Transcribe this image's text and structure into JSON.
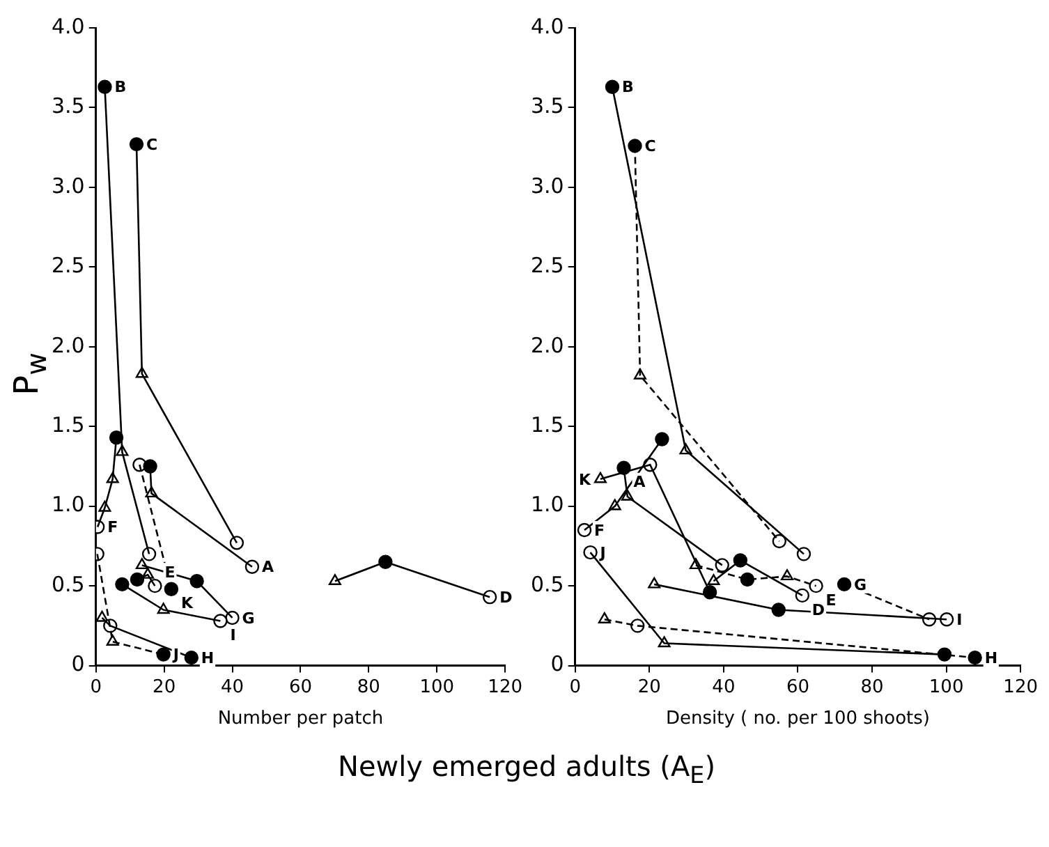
{
  "chart_data": [
    {
      "type": "line",
      "xlabel": "Number per patch",
      "ylabel": "P$_{w}$",
      "xlim": [
        0,
        120
      ],
      "xticks": [
        0,
        20,
        40,
        60,
        80,
        100,
        120
      ],
      "ylim": [
        0,
        4
      ],
      "yticks": [
        0,
        0.5,
        {
          "value": 1,
          "label": "1.0"
        },
        1.5,
        {
          "value": 2,
          "label": "2.0"
        },
        2.5,
        {
          "value": 3,
          "label": "3.0"
        },
        3.5,
        {
          "value": 4,
          "label": "4.0"
        }
      ],
      "grid": false,
      "legend": false,
      "marker": "none",
      "series": [
        {
          "color": "#000000",
          "line_style": "solid",
          "x": [
            2.6,
            7.7,
            15.6
          ],
          "values": [
            3.63,
            1.34,
            0.7
          ]
        },
        {
          "type": "line",
          "color": "#000000",
          "line_style": "solid",
          "x": [
            11.9,
            13.5,
            41.3
          ],
          "values": [
            3.27,
            1.83,
            0.77
          ]
        },
        {
          "type": "line",
          "color": "#000000",
          "line_style": "solid",
          "x": [
            15.9,
            16.3,
            45.8
          ],
          "values": [
            1.25,
            1.08,
            0.62
          ]
        },
        {
          "type": "line",
          "color": "#000000",
          "line_style": "solid",
          "x": [
            70.1,
            84.9,
            115.5
          ],
          "values": [
            0.53,
            0.65,
            0.43
          ]
        },
        {
          "type": "line",
          "color": "#000000",
          "line_style": "solid",
          "x": [
            12.1,
            15.2,
            17.3
          ],
          "values": [
            0.54,
            0.57,
            0.5
          ]
        },
        {
          "type": "line",
          "color": "#000000",
          "line_style": "solid",
          "x": [
            0.5,
            2.6,
            4.9,
            6
          ],
          "values": [
            0.87,
            0.99,
            1.17,
            1.43
          ]
        },
        {
          "type": "line",
          "color": "#000000",
          "line_style": "solid",
          "x": [
            13.5,
            29.6,
            40
          ],
          "values": [
            0.63,
            0.53,
            0.3
          ]
        },
        {
          "type": "line",
          "color": "#000000",
          "line_style": "solid",
          "x": [
            1.8,
            4.2,
            28
          ],
          "values": [
            0.3,
            0.25,
            0.05
          ]
        },
        {
          "type": "line",
          "color": "#000000",
          "line_style": "solid",
          "x": [
            7.7,
            19.8,
            36.5
          ],
          "values": [
            0.51,
            0.35,
            0.28
          ]
        },
        {
          "type": "line",
          "color": "#000000",
          "line_style": "dashed",
          "x": [
            0.4,
            4.9,
            19.8
          ],
          "values": [
            0.7,
            0.15,
            0.07
          ]
        },
        {
          "type": "line",
          "color": "#000000",
          "line_style": "dashed",
          "x": [
            12.8,
            22.1
          ],
          "values": [
            1.26,
            0.48
          ]
        },
        {
          "type": "scatter",
          "marker": "circle",
          "color": "#000000",
          "x": [
            15.9,
            2.6,
            11.9,
            84.9,
            12.1,
            6,
            29.6,
            28,
            7.7,
            19.8,
            22.1
          ],
          "values": [
            1.25,
            3.63,
            3.27,
            0.65,
            0.54,
            1.43,
            0.53,
            0.05,
            0.51,
            0.07,
            0.48
          ]
        },
        {
          "type": "scatter",
          "marker": "circle",
          "color": "#ffffff",
          "x": [
            45.8,
            15.6,
            41.3,
            115.5,
            17.3,
            0.5,
            40,
            4.2,
            36.5,
            0.4,
            12.8
          ],
          "values": [
            0.62,
            0.7,
            0.77,
            0.43,
            0.5,
            0.87,
            0.3,
            0.25,
            0.28,
            0.7,
            1.26
          ]
        },
        {
          "type": "scatter",
          "marker": "triangle",
          "color": "#ffffff",
          "x": [
            16.3,
            7.7,
            13.5,
            70.1,
            15.2,
            2.6,
            4.9,
            13.5,
            1.8,
            19.8,
            4.9
          ],
          "values": [
            1.08,
            1.34,
            1.83,
            0.53,
            0.57,
            0.99,
            1.17,
            0.63,
            0.3,
            0.35,
            0.15
          ]
        }
      ],
      "annotations": [
        {
          "text": "B",
          "x": 2.6,
          "y": 3.63
        },
        {
          "text": "C",
          "x": 11.9,
          "y": 3.27
        },
        {
          "text": "A",
          "x": 45.8,
          "y": 0.62
        },
        {
          "text": "D",
          "x": 115.5,
          "y": 0.43
        },
        {
          "text": "E",
          "x": 17.3,
          "y": 0.5
        },
        {
          "text": "F",
          "x": 0.5,
          "y": 0.87
        },
        {
          "text": "G",
          "x": 40,
          "y": 0.3
        },
        {
          "text": "H",
          "x": 28,
          "y": 0.05
        },
        {
          "text": "I",
          "x": 36.5,
          "y": 0.28
        },
        {
          "text": "J",
          "x": 19.8,
          "y": 0.07
        },
        {
          "text": "K",
          "x": 22.1,
          "y": 0.48
        },
        "Newly emerged adults (A$_{E}$)"
      ]
    },
    {
      "type": "line",
      "xlabel": "Density ( no. per 100 shoots)",
      "xlim": [
        0,
        120
      ],
      "xticks": [
        0,
        20,
        40,
        60,
        80,
        100,
        120
      ],
      "ylim": [
        0,
        4
      ],
      "yticks": [
        0,
        0.5,
        {
          "value": 1,
          "label": "1.0"
        },
        1.5,
        {
          "value": 2,
          "label": "2.0"
        },
        2.5,
        {
          "value": 3,
          "label": "3.0"
        },
        3.5,
        {
          "value": 4,
          "label": "4.0"
        }
      ],
      "grid": false,
      "legend": false,
      "marker": "none",
      "series": [
        {
          "color": "#000000",
          "line_style": "solid",
          "x": [
            10,
            29.8,
            61.6
          ],
          "values": [
            3.63,
            1.35,
            0.7
          ]
        },
        {
          "type": "line",
          "color": "#000000",
          "line_style": "dashed",
          "x": [
            16.1,
            17.5,
            55
          ],
          "values": [
            3.26,
            1.82,
            0.78
          ]
        },
        {
          "type": "line",
          "color": "#000000",
          "line_style": "solid",
          "x": [
            13.1,
            14.1,
            39.6
          ],
          "values": [
            1.24,
            1.06,
            0.63
          ]
        },
        {
          "type": "line",
          "color": "#000000",
          "line_style": "solid",
          "x": [
            2.5,
            10.7,
            23.4
          ],
          "values": [
            0.85,
            1,
            1.42
          ]
        },
        {
          "type": "line",
          "color": "#000000",
          "line_style": "solid",
          "x": [
            6.8,
            20.2,
            36.3
          ],
          "values": [
            1.17,
            1.26,
            0.46
          ]
        },
        {
          "type": "line",
          "color": "#000000",
          "line_style": "dashed",
          "x": [
            32.5,
            46.4,
            57.1,
            64.9
          ],
          "values": [
            0.63,
            0.54,
            0.56,
            0.5
          ]
        },
        {
          "type": "line",
          "color": "#000000",
          "line_style": "solid",
          "x": [
            37.3,
            44.5,
            61.2
          ],
          "values": [
            0.53,
            0.66,
            0.44
          ]
        },
        {
          "type": "line",
          "color": "#000000",
          "line_style": "dashed",
          "x": [
            72.5,
            95.4
          ],
          "values": [
            0.51,
            0.29
          ]
        },
        {
          "type": "line",
          "color": "#000000",
          "line_style": "solid",
          "x": [
            21.3,
            54.8,
            100.1
          ],
          "values": [
            0.51,
            0.35,
            0.29
          ]
        },
        {
          "type": "line",
          "color": "#000000",
          "line_style": "solid",
          "x": [
            4.1,
            24,
            99.5
          ],
          "values": [
            0.71,
            0.14,
            0.07
          ]
        },
        {
          "type": "line",
          "color": "#000000",
          "line_style": "dashed",
          "x": [
            7.9,
            16.8,
            107.7
          ],
          "values": [
            0.29,
            0.25,
            0.05
          ]
        },
        {
          "type": "scatter",
          "marker": "circle",
          "color": "#000000",
          "x": [
            10,
            16.1,
            23.4,
            13.1,
            36.3,
            46.4,
            44.5,
            72.5,
            54.8,
            99.5,
            107.7
          ],
          "values": [
            3.63,
            3.26,
            1.42,
            1.24,
            0.46,
            0.54,
            0.66,
            0.51,
            0.35,
            0.07,
            0.05
          ]
        },
        {
          "type": "scatter",
          "marker": "circle",
          "color": "#ffffff",
          "x": [
            61.6,
            55,
            2.5,
            20.2,
            39.6,
            64.9,
            61.2,
            95.4,
            100.1,
            4.1,
            16.8
          ],
          "values": [
            0.7,
            0.78,
            0.85,
            1.26,
            0.63,
            0.5,
            0.44,
            0.29,
            0.29,
            0.71,
            0.25
          ]
        },
        {
          "type": "scatter",
          "marker": "triangle",
          "color": "#ffffff",
          "x": [
            29.8,
            17.5,
            10.7,
            14.1,
            6.8,
            32.5,
            57.1,
            37.3,
            21.3,
            24,
            7.9
          ],
          "values": [
            1.35,
            1.82,
            1,
            1.06,
            1.17,
            0.63,
            0.56,
            0.53,
            0.51,
            0.14,
            0.29
          ]
        }
      ],
      "annotations": [
        {
          "text": "B",
          "x": 10,
          "y": 3.63
        },
        {
          "text": "C",
          "x": 16.1,
          "y": 3.26
        },
        {
          "text": "A",
          "x": 13.1,
          "y": 1.24
        },
        {
          "text": "K",
          "x": 6.8,
          "y": 1.17
        },
        {
          "text": "F",
          "x": 2.5,
          "y": 0.85
        },
        {
          "text": "J",
          "x": 4.1,
          "y": 0.71
        },
        {
          "text": "E",
          "x": 64.9,
          "y": 0.5
        },
        {
          "text": "D",
          "x": 61.2,
          "y": 0.44
        },
        {
          "text": "G",
          "x": 72.5,
          "y": 0.51
        },
        {
          "text": "I",
          "x": 100.1,
          "y": 0.29
        },
        {
          "text": "H",
          "x": 107.7,
          "y": 0.05
        }
      ]
    }
  ]
}
